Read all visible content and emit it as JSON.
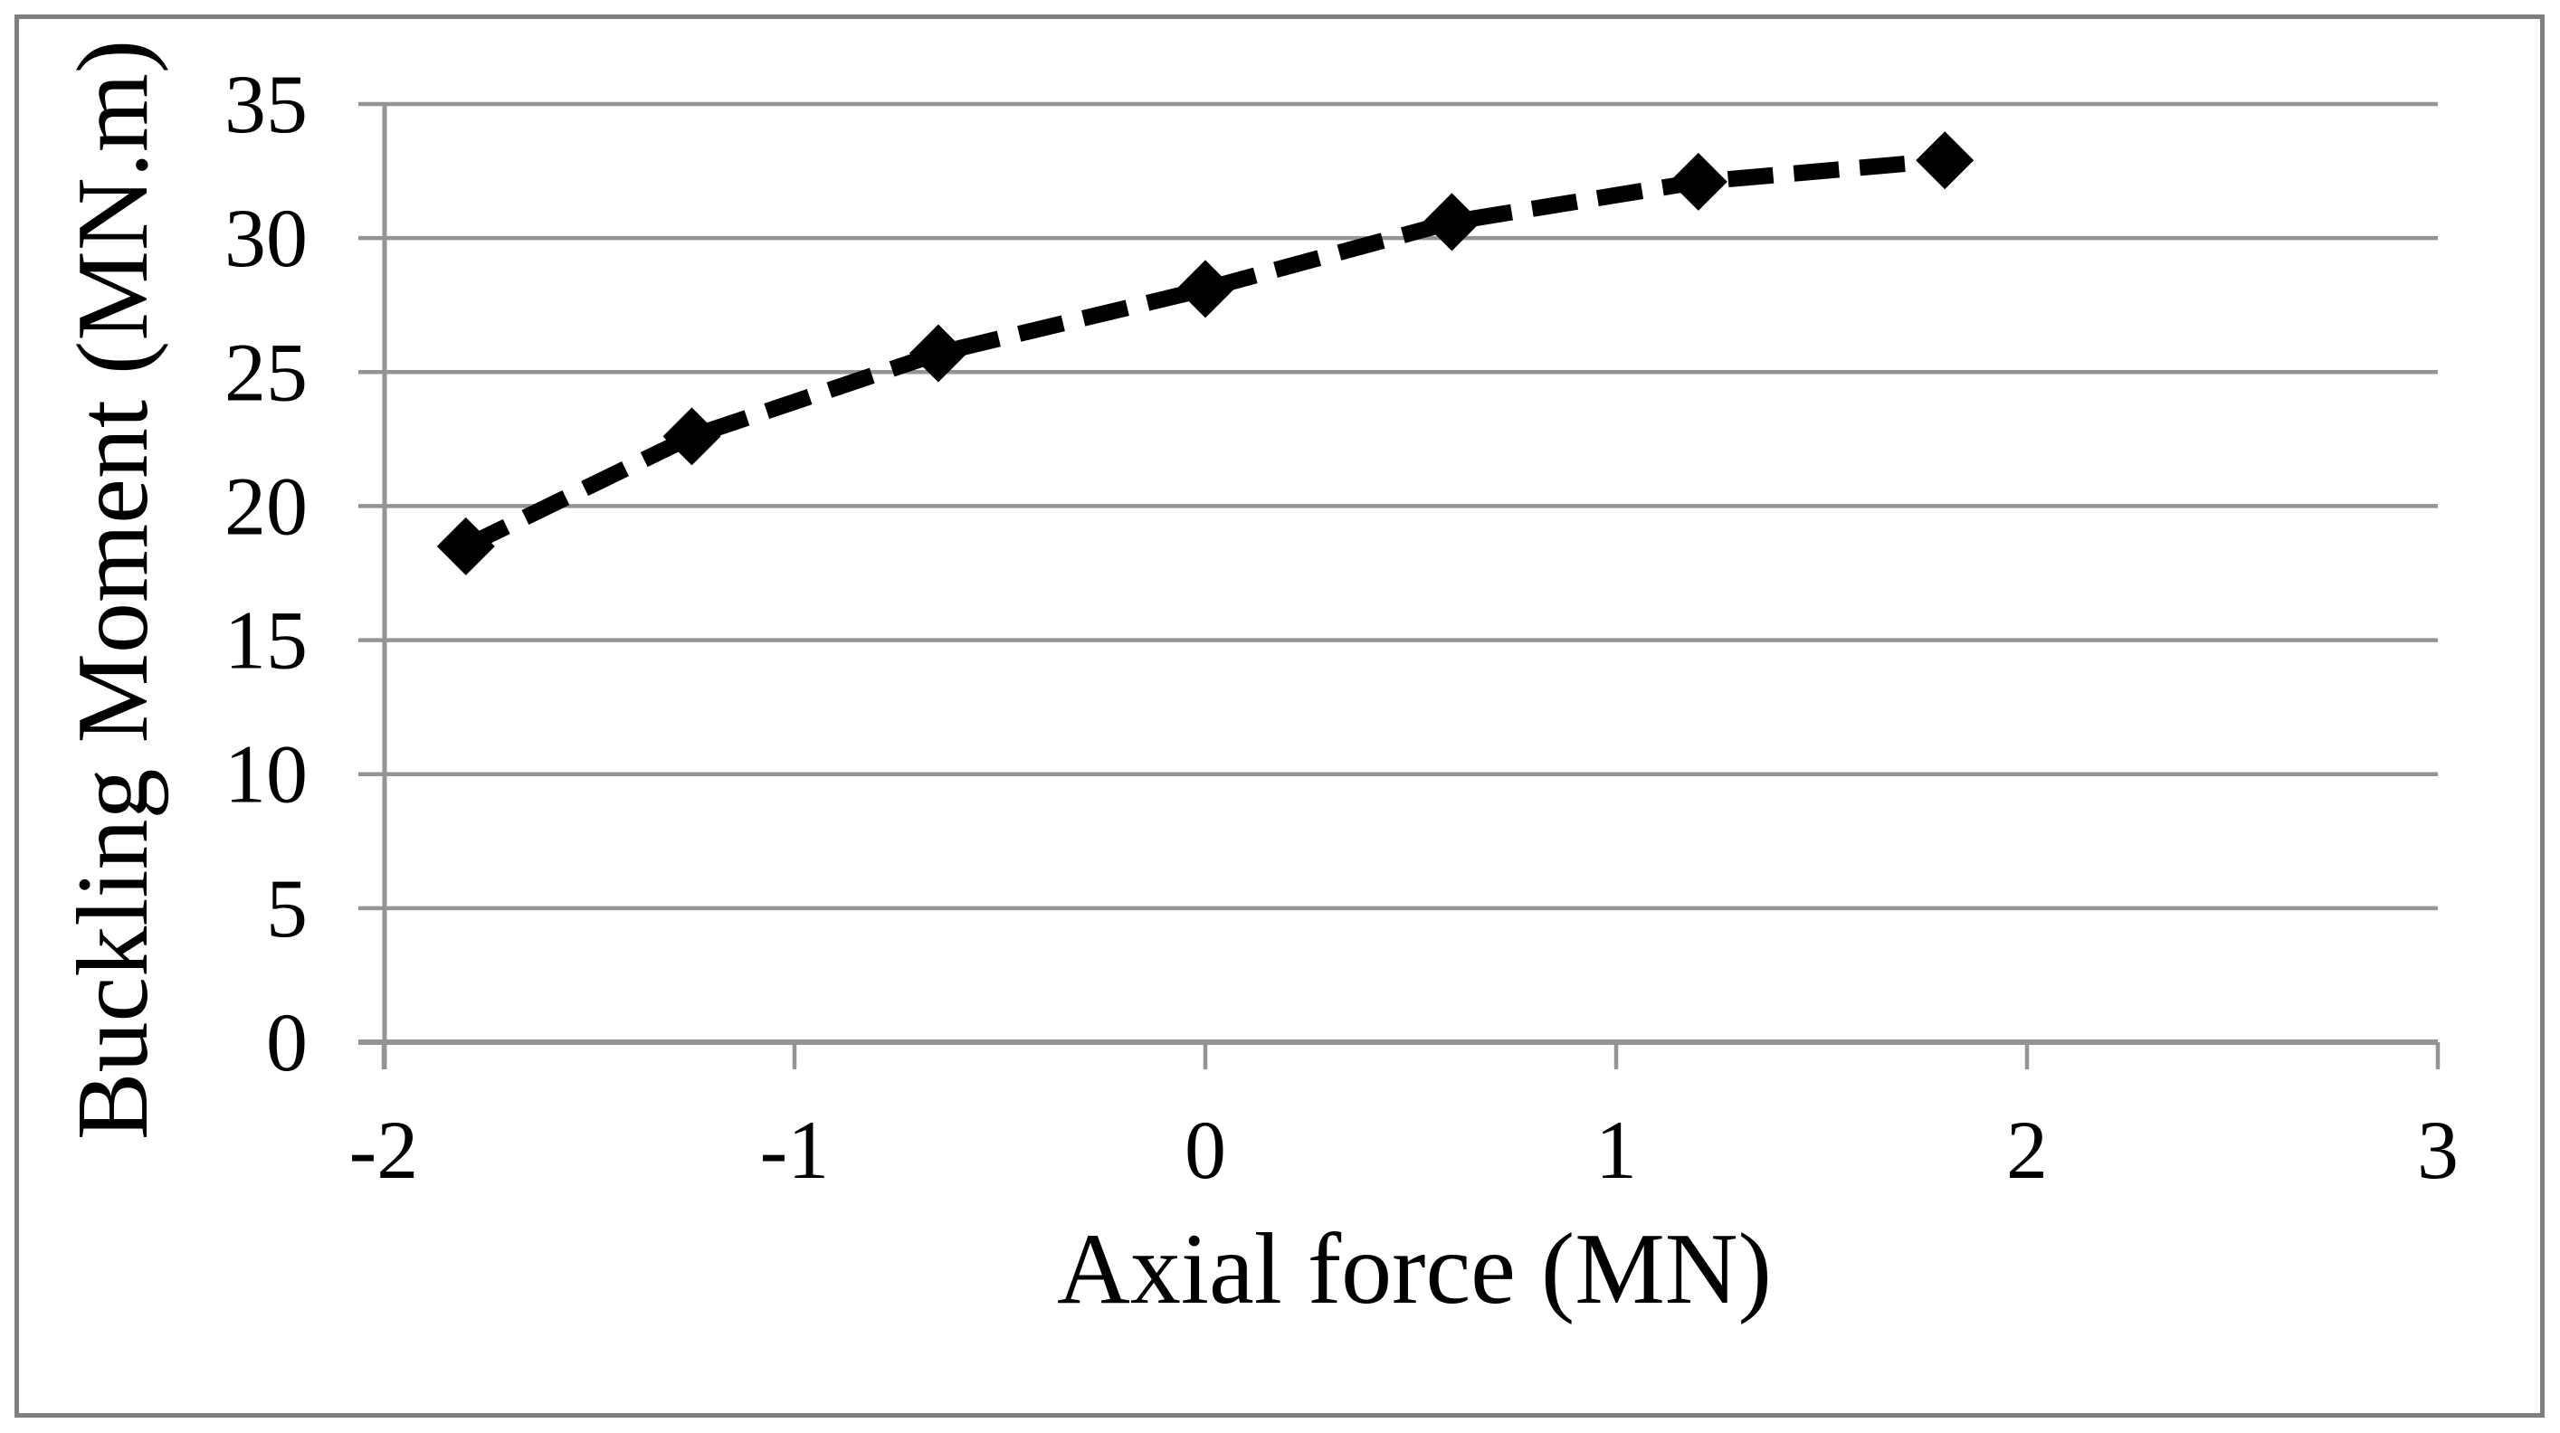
{
  "figure": {
    "background_color": "#ffffff",
    "border_color": "#7f7f7f",
    "grid_color": "#949494",
    "series_color": "#000000"
  },
  "chart_data": {
    "type": "line",
    "title": "",
    "xlabel": "Axial force (MN)",
    "ylabel": "Buckling Moment (MN.m)",
    "xlim": [
      -2,
      3
    ],
    "ylim": [
      0,
      35
    ],
    "grid": "horizontal-only",
    "legend": "none",
    "x_ticks": [
      -2,
      -1,
      0,
      1,
      2,
      3
    ],
    "x_tick_labels": [
      "-2",
      "-1",
      "0",
      "1",
      "2",
      "3"
    ],
    "y_ticks": [
      0,
      5,
      10,
      15,
      20,
      25,
      30,
      35
    ],
    "y_tick_labels": [
      "0",
      "5",
      "10",
      "15",
      "20",
      "25",
      "30",
      "35"
    ],
    "series": [
      {
        "name": "buckling-moment-curve",
        "line_style": "dashed",
        "marker": "diamond",
        "color": "#000000",
        "x": [
          -1.8,
          -1.25,
          -0.65,
          0,
          0.6,
          1.2,
          1.8
        ],
        "y": [
          18.5,
          22.6,
          25.7,
          28.1,
          30.6,
          32.1,
          32.9
        ]
      }
    ]
  }
}
